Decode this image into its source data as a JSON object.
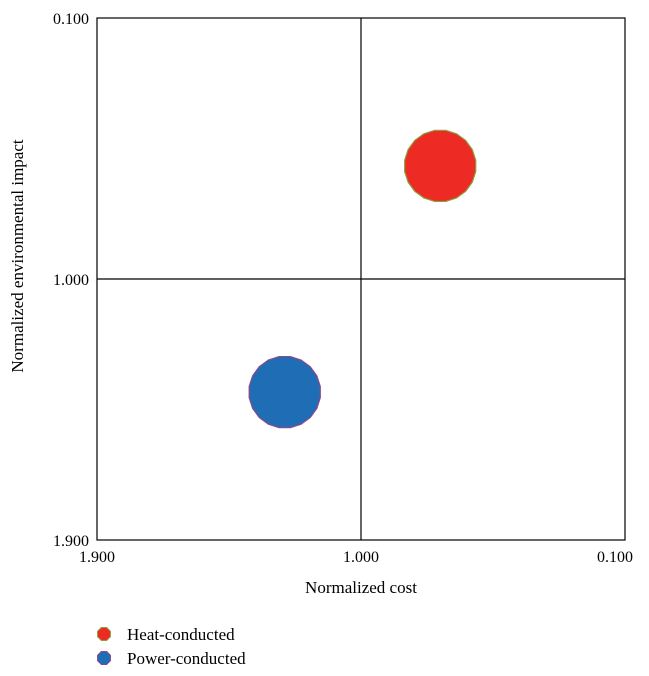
{
  "chart_data": {
    "type": "scatter",
    "title": "",
    "xlabel": "Normalized cost",
    "ylabel": "Normalized environmental impact",
    "x_tick_labels": [
      "1.900",
      "1.000",
      "0.100"
    ],
    "y_tick_labels": [
      "0.100",
      "1.000",
      "1.900"
    ],
    "xlim": [
      1.9,
      0.1
    ],
    "ylim": [
      1.9,
      0.1
    ],
    "x_axis_reversed": true,
    "y_axis_top_value": 0.1,
    "grid": false,
    "quadrant_lines": {
      "x": 1.0,
      "y": 1.0
    },
    "legend_position": "bottom-left",
    "series": [
      {
        "name": "Heat-conducted",
        "x": [
          0.73
        ],
        "y": [
          0.61
        ],
        "color": "#ee2a24",
        "edge_color": "#8aa040",
        "marker": "circle"
      },
      {
        "name": "Power-conducted",
        "x": [
          1.26
        ],
        "y": [
          1.39
        ],
        "color": "#1f6db5",
        "edge_color": "#8a4a8a",
        "marker": "circle"
      }
    ]
  }
}
